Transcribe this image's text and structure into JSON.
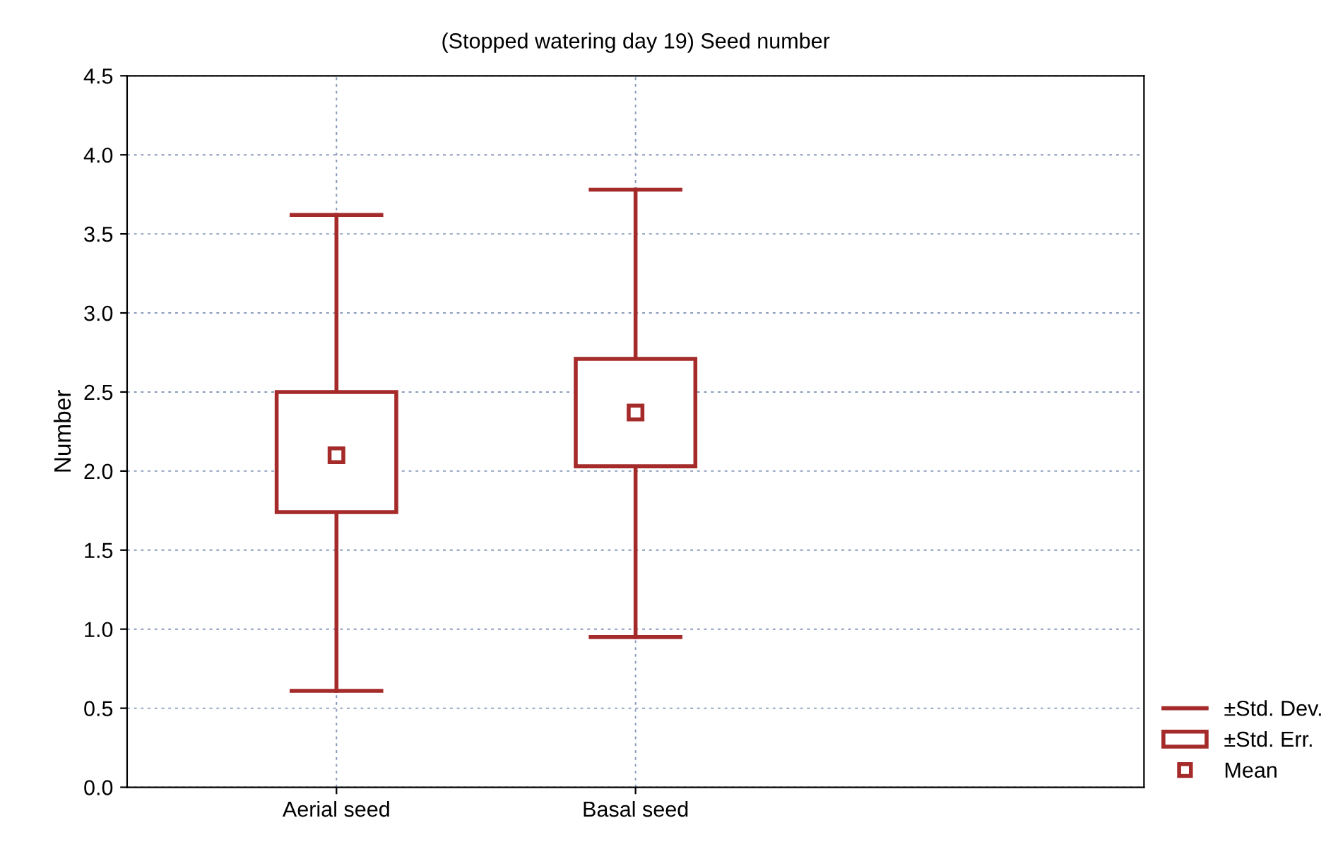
{
  "chart_data": {
    "type": "box",
    "title": "(Stopped watering day 19) Seed number",
    "ylabel": "Number",
    "categories": [
      "Aerial seed",
      "Basal seed"
    ],
    "series": [
      {
        "color": "#a52a2a",
        "boxes": [
          {
            "low": 0.61,
            "q1": 1.74,
            "q3": 2.5,
            "high": 3.62,
            "mean": 2.1
          },
          {
            "low": 0.95,
            "q1": 2.03,
            "q3": 2.71,
            "high": 3.78,
            "mean": 2.37
          }
        ]
      }
    ],
    "annotations": [
      "±Std. Dev.",
      "±Std. Err.",
      "Mean"
    ],
    "ylim": [
      0,
      4.5
    ],
    "yticks": [
      {
        "value": 0,
        "label": "0.0"
      },
      0.5,
      {
        "value": 1,
        "label": "1.0"
      },
      1.5,
      {
        "value": 2,
        "label": "2.0"
      },
      2.5,
      {
        "value": 3,
        "label": "3.0"
      },
      3.5,
      {
        "value": 4,
        "label": "4.0"
      },
      4.5
    ],
    "grid": true,
    "marker": "square"
  }
}
